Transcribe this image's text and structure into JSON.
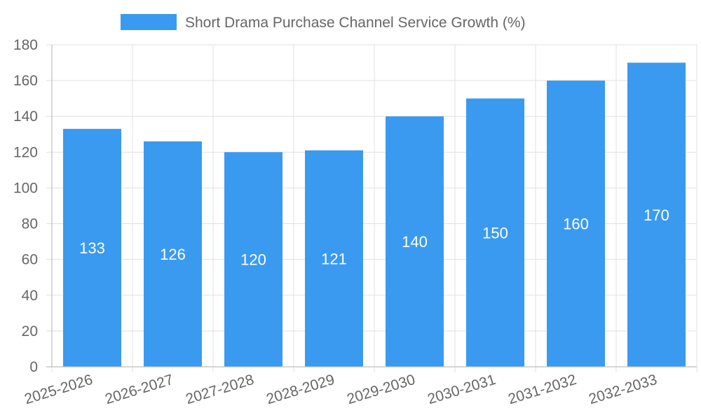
{
  "chart_data": {
    "type": "bar",
    "title": "",
    "xlabel": "",
    "ylabel": "",
    "legend_position": "top-center",
    "grid": true,
    "categories": [
      "2025-2026",
      "2026-2027",
      "2027-2028",
      "2028-2029",
      "2029-2030",
      "2030-2031",
      "2031-2032",
      "2032-2033"
    ],
    "series": [
      {
        "name": "Short Drama Purchase Channel Service Growth (%)",
        "color": "#3a9af0",
        "values": [
          133,
          126,
          120,
          121,
          140,
          150,
          160,
          170
        ]
      }
    ],
    "ylim": [
      0,
      180
    ],
    "yticks": [
      0,
      20,
      40,
      60,
      80,
      100,
      120,
      140,
      160,
      180
    ],
    "data_labels": true
  }
}
